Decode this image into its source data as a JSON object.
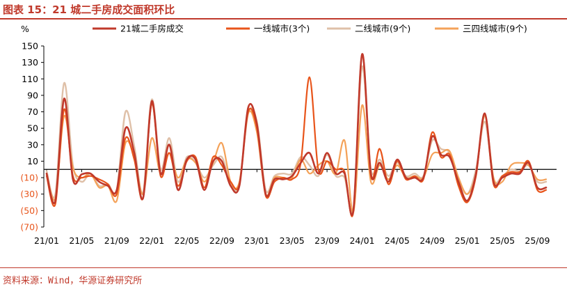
{
  "header": {
    "title": "图表 15：21 城二手房成交面积环比"
  },
  "footer": {
    "source": "资料来源：Wind，华源证券研究所"
  },
  "chart_data": {
    "type": "line",
    "ylabel": "%",
    "ylim": [
      -70,
      150
    ],
    "yticks": [
      150,
      130,
      110,
      90,
      70,
      50,
      30,
      10,
      -10,
      -30,
      -50,
      -70
    ],
    "ytick_labels": [
      "150",
      "130",
      "110",
      "90",
      "70",
      "50",
      "30",
      "10",
      "(10)",
      "(30)",
      "(50)",
      "(70)"
    ],
    "xticks": [
      "21/01",
      "21/05",
      "21/09",
      "22/01",
      "22/05",
      "22/09",
      "23/01",
      "23/05",
      "23/09",
      "24/01",
      "24/05",
      "24/09",
      "25/01",
      "25/05",
      "25/09"
    ],
    "legend_position": "top",
    "x": [
      "21/01",
      "21/02",
      "21/03",
      "21/04",
      "21/05",
      "21/06",
      "21/07",
      "21/08",
      "21/09",
      "21/10",
      "21/11",
      "21/12",
      "22/01",
      "22/02",
      "22/03",
      "22/04",
      "22/05",
      "22/06",
      "22/07",
      "22/08",
      "22/09",
      "22/10",
      "22/11",
      "22/12",
      "23/01",
      "23/02",
      "23/03",
      "23/04",
      "23/05",
      "23/06",
      "23/07",
      "23/08",
      "23/09",
      "23/10",
      "23/11",
      "23/12",
      "24/01",
      "24/02",
      "24/03",
      "24/04",
      "24/05",
      "24/06",
      "24/07",
      "24/08",
      "24/09",
      "24/10",
      "24/11",
      "24/12",
      "25/01",
      "25/02",
      "25/03",
      "25/04",
      "25/05",
      "25/06",
      "25/07",
      "25/08",
      "25/09",
      "25/10"
    ],
    "series": [
      {
        "name": "21城二手房成交",
        "color": "#c0392b",
        "width": 2.6,
        "values": [
          -5,
          -38,
          86,
          -12,
          -6,
          -5,
          -15,
          -20,
          -25,
          50,
          20,
          -35,
          83,
          -5,
          30,
          -25,
          12,
          12,
          -25,
          10,
          10,
          -20,
          -20,
          75,
          55,
          -30,
          -12,
          -12,
          -8,
          8,
          20,
          -5,
          20,
          -5,
          -5,
          -50,
          140,
          -5,
          8,
          -15,
          12,
          -10,
          -10,
          -10,
          40,
          18,
          15,
          -15,
          -38,
          -5,
          68,
          -15,
          -10,
          -5,
          -5,
          8,
          -22,
          -22
        ]
      },
      {
        "name": "一线城市(3个)",
        "color": "#e8541a",
        "width": 2.2,
        "values": [
          -8,
          -42,
          73,
          -8,
          -10,
          -8,
          -12,
          -18,
          -30,
          38,
          12,
          -35,
          80,
          -8,
          20,
          -20,
          10,
          15,
          -22,
          15,
          5,
          -15,
          -18,
          70,
          50,
          -32,
          -15,
          -10,
          -12,
          8,
          112,
          0,
          10,
          0,
          -3,
          -52,
          140,
          -8,
          25,
          -18,
          10,
          -12,
          -8,
          -12,
          45,
          15,
          18,
          -20,
          -40,
          -8,
          68,
          -18,
          -8,
          -3,
          -3,
          10,
          -25,
          -25
        ]
      },
      {
        "name": "二线城市(9个)",
        "color": "#dfc0a8",
        "width": 2.4,
        "values": [
          -2,
          -30,
          105,
          5,
          -15,
          -5,
          -20,
          -18,
          -25,
          70,
          28,
          -28,
          85,
          0,
          38,
          -15,
          15,
          8,
          -10,
          5,
          15,
          -18,
          -18,
          68,
          58,
          -25,
          -8,
          -5,
          -5,
          15,
          5,
          -8,
          18,
          -8,
          -10,
          -48,
          125,
          0,
          12,
          -8,
          8,
          -8,
          -5,
          -8,
          35,
          25,
          20,
          -10,
          -30,
          0,
          58,
          -12,
          -8,
          0,
          -2,
          5,
          -15,
          -15
        ]
      },
      {
        "name": "三四线城市(9个)",
        "color": "#f4a259",
        "width": 2.2,
        "values": [
          -5,
          -35,
          65,
          2,
          -10,
          -5,
          -22,
          -20,
          -38,
          32,
          15,
          -30,
          38,
          -5,
          20,
          -10,
          12,
          8,
          -15,
          8,
          32,
          -15,
          -15,
          68,
          45,
          -30,
          -10,
          -10,
          -10,
          12,
          -5,
          5,
          10,
          -5,
          35,
          -52,
          78,
          -15,
          5,
          -12,
          5,
          -10,
          -8,
          -10,
          18,
          20,
          22,
          -10,
          -30,
          -5,
          65,
          -10,
          -15,
          5,
          8,
          5,
          -12,
          -12
        ]
      }
    ]
  }
}
